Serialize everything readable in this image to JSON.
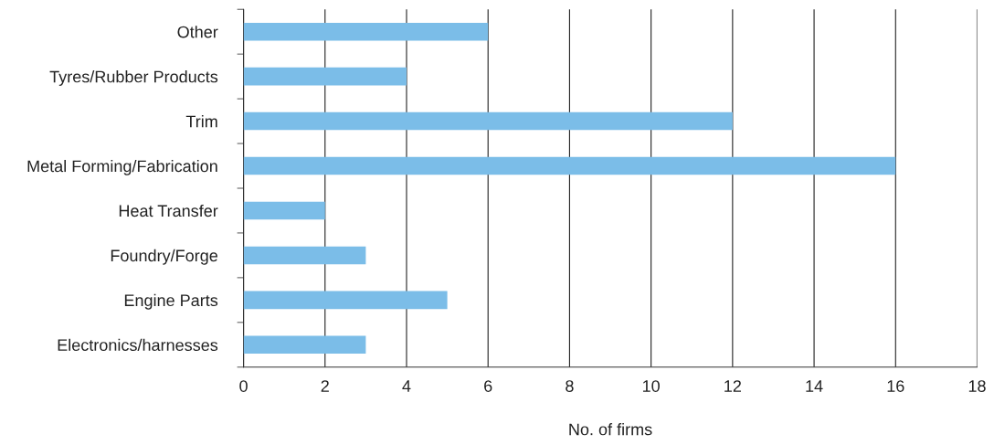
{
  "chart_data": {
    "type": "bar",
    "orientation": "horizontal",
    "xlabel": "No. of firms",
    "categories": [
      "Other",
      "Tyres/Rubber Products",
      "Trim",
      "Metal Forming/Fabrication",
      "Heat Transfer",
      "Foundry/Forge",
      "Engine Parts",
      "Electronics/harnesses"
    ],
    "values": [
      6,
      4,
      12,
      16,
      2,
      3,
      5,
      3
    ],
    "color": "#7bbde8",
    "xlim": [
      0,
      18
    ],
    "xticks": [
      0,
      2,
      4,
      6,
      8,
      10,
      12,
      14,
      16,
      18
    ],
    "grid": "x",
    "legend": false
  }
}
